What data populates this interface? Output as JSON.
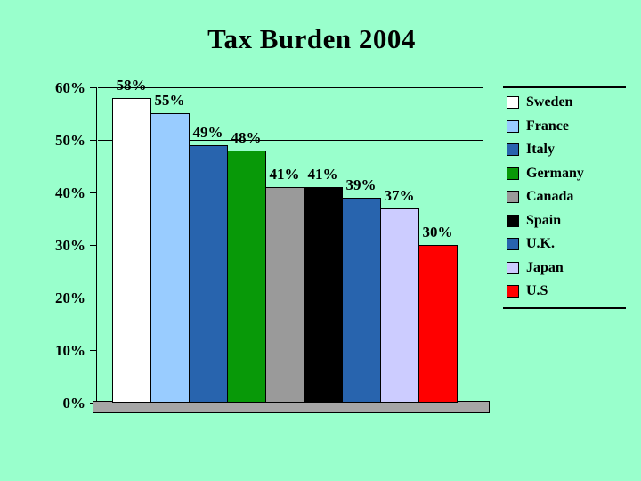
{
  "chart_data": {
    "type": "bar",
    "title": "Tax Burden 2004",
    "categories": [
      "Sweden",
      "France",
      "Italy",
      "Germany",
      "Canada",
      "Spain",
      "U.K.",
      "Japan",
      "U.S"
    ],
    "values": [
      58,
      55,
      49,
      48,
      41,
      41,
      39,
      37,
      30
    ],
    "data_labels": [
      "58%",
      "55%",
      "49%",
      "48%",
      "41%",
      "41%",
      "39%",
      "37%",
      "30%"
    ],
    "colors": [
      "#FFFFFF",
      "#99CCFF",
      "#2864AE",
      "#089908",
      "#9A9A9A",
      "#000000",
      "#2864AE",
      "#CCCCFF",
      "#FF0000"
    ],
    "xlabel": "",
    "ylabel": "",
    "ylim": [
      0,
      60
    ],
    "ytick_step": 10,
    "ytick_labels": [
      "0%",
      "10%",
      "20%",
      "30%",
      "40%",
      "50%",
      "60%"
    ],
    "gridlines_at": [
      50,
      60
    ],
    "grid": "partial",
    "legend_position": "right",
    "background_color": "#99FFCC",
    "floor_color": "#A6A6A6",
    "text_color": "#000000"
  }
}
